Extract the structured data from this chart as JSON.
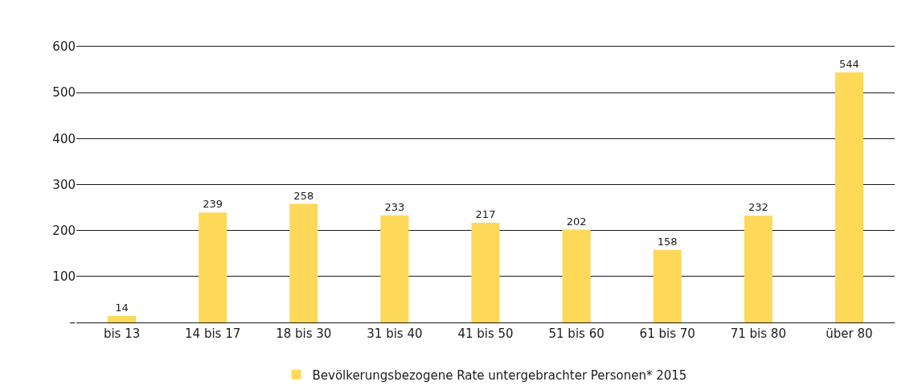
{
  "chart_data": {
    "type": "bar",
    "categories": [
      "bis 13",
      "14 bis 17",
      "18 bis 30",
      "31 bis 40",
      "41 bis 50",
      "51 bis 60",
      "61 bis 70",
      "71 bis 80",
      "über 80"
    ],
    "series": [
      {
        "name": "Bevölkerungsbezogene Rate untergebrachter Personen* 2015",
        "color": "#fed858",
        "values": [
          14,
          239,
          258,
          233,
          217,
          202,
          158,
          232,
          544
        ]
      }
    ],
    "ylim": [
      0,
      600
    ],
    "yticks": [
      {
        "value": 0,
        "label": "–"
      },
      100,
      200,
      300,
      400,
      500,
      600
    ],
    "grid": "y",
    "legend": "bottom",
    "data_labels": true
  }
}
